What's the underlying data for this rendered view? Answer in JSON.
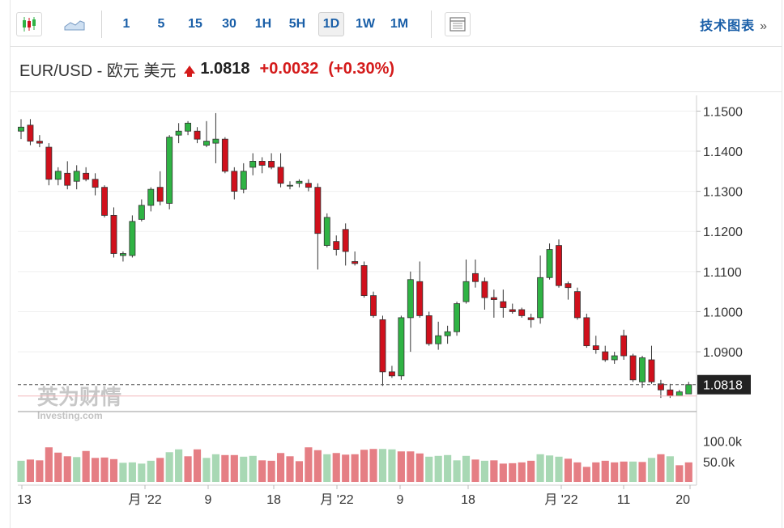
{
  "toolbar": {
    "chart_types": [
      "candlestick-icon",
      "area-chart-icon"
    ],
    "timeframes": [
      "1",
      "5",
      "15",
      "30",
      "1H",
      "5H",
      "1D",
      "1W",
      "1M"
    ],
    "active_timeframe": "1D",
    "extra_icon": "indicator-panel-icon",
    "tech_link": "技术图表",
    "tech_chevron": "»"
  },
  "quote": {
    "symbol": "EUR/USD - 欧元 美元",
    "price": "1.0818",
    "change": "+0.0032",
    "change_pct": "(+0.30%)",
    "direction": "up"
  },
  "colors": {
    "up": "#2fb344",
    "down": "#d0101c",
    "vol_up": "#a8d8b4",
    "vol_down": "#e57e84",
    "accent": "#1a5fa8"
  },
  "watermark": {
    "cn": "英为财情",
    "en": "Investing.com"
  },
  "chart_data": {
    "type": "candlestick",
    "price_axis": {
      "ticks": [
        1.15,
        1.14,
        1.13,
        1.12,
        1.11,
        1.1,
        1.09
      ],
      "tick_labels": [
        "1.1500",
        "1.1400",
        "1.1300",
        "1.1200",
        "1.1100",
        "1.1000",
        "1.0900"
      ],
      "range": [
        1.0755,
        1.1525
      ]
    },
    "current_price": {
      "value": 1.0818,
      "label": "1.0818"
    },
    "volume_axis": {
      "tick_labels": [
        "100.0k",
        "50.0k"
      ],
      "ticks": [
        100000,
        50000
      ],
      "max": 155000
    },
    "x_labels": [
      "13",
      "月 '22",
      "9",
      "18",
      "月 '22",
      "9",
      "18",
      "月 '22",
      "11",
      "20"
    ],
    "candles": [
      [
        1.145,
        1.148,
        1.143,
        1.146
      ],
      [
        1.1465,
        1.148,
        1.1415,
        1.1425
      ],
      [
        1.1425,
        1.144,
        1.141,
        1.142
      ],
      [
        1.141,
        1.142,
        1.1315,
        1.133
      ],
      [
        1.133,
        1.136,
        1.1315,
        1.135
      ],
      [
        1.1345,
        1.1375,
        1.1305,
        1.1315
      ],
      [
        1.1325,
        1.1365,
        1.1305,
        1.135
      ],
      [
        1.1345,
        1.136,
        1.1325,
        1.133
      ],
      [
        1.133,
        1.1345,
        1.129,
        1.131
      ],
      [
        1.131,
        1.1315,
        1.1235,
        1.124
      ],
      [
        1.124,
        1.126,
        1.1135,
        1.1145
      ],
      [
        1.114,
        1.115,
        1.1125,
        1.1145
      ],
      [
        1.114,
        1.124,
        1.1135,
        1.1225
      ],
      [
        1.123,
        1.128,
        1.1225,
        1.1265
      ],
      [
        1.1265,
        1.131,
        1.125,
        1.1305
      ],
      [
        1.131,
        1.135,
        1.1265,
        1.1275
      ],
      [
        1.127,
        1.144,
        1.1255,
        1.1435
      ],
      [
        1.144,
        1.147,
        1.142,
        1.145
      ],
      [
        1.145,
        1.1475,
        1.144,
        1.147
      ],
      [
        1.145,
        1.146,
        1.142,
        1.143
      ],
      [
        1.1415,
        1.1475,
        1.141,
        1.1425
      ],
      [
        1.142,
        1.1495,
        1.137,
        1.143
      ],
      [
        1.143,
        1.1435,
        1.1345,
        1.135
      ],
      [
        1.135,
        1.136,
        1.128,
        1.13
      ],
      [
        1.1305,
        1.137,
        1.1295,
        1.135
      ],
      [
        1.136,
        1.1395,
        1.134,
        1.1375
      ],
      [
        1.1375,
        1.1385,
        1.1345,
        1.1365
      ],
      [
        1.1375,
        1.1395,
        1.1355,
        1.136
      ],
      [
        1.136,
        1.1395,
        1.131,
        1.132
      ],
      [
        1.1315,
        1.1325,
        1.1305,
        1.1315
      ],
      [
        1.132,
        1.133,
        1.131,
        1.1325
      ],
      [
        1.132,
        1.133,
        1.13,
        1.131
      ],
      [
        1.131,
        1.132,
        1.1105,
        1.1195
      ],
      [
        1.1165,
        1.1245,
        1.116,
        1.1235
      ],
      [
        1.1175,
        1.119,
        1.114,
        1.1155
      ],
      [
        1.1205,
        1.122,
        1.1115,
        1.115
      ],
      [
        1.1125,
        1.115,
        1.1115,
        1.112
      ],
      [
        1.1115,
        1.1125,
        1.1035,
        1.104
      ],
      [
        1.104,
        1.105,
        1.0985,
        1.099
      ],
      [
        1.098,
        1.099,
        1.0815,
        1.085
      ],
      [
        1.085,
        1.0865,
        1.0835,
        1.084
      ],
      [
        1.084,
        1.099,
        1.083,
        1.0985
      ],
      [
        1.0985,
        1.11,
        1.09,
        1.108
      ],
      [
        1.1075,
        1.1125,
        1.0985,
        1.099
      ],
      [
        1.099,
        1.1,
        1.0915,
        1.092
      ],
      [
        1.092,
        1.0975,
        1.0905,
        1.094
      ],
      [
        1.094,
        1.0965,
        1.092,
        1.095
      ],
      [
        1.095,
        1.1025,
        1.094,
        1.102
      ],
      [
        1.1025,
        1.113,
        1.102,
        1.1075
      ],
      [
        1.1095,
        1.113,
        1.106,
        1.1075
      ],
      [
        1.1075,
        1.1085,
        1.1005,
        1.1035
      ],
      [
        1.1035,
        1.1055,
        1.0985,
        1.103
      ],
      [
        1.1025,
        1.1055,
        1.0985,
        1.101
      ],
      [
        1.1005,
        1.102,
        1.0995,
        1.1
      ],
      [
        1.1005,
        1.101,
        1.0985,
        1.099
      ],
      [
        1.0985,
        1.0995,
        1.096,
        1.098
      ],
      [
        1.0985,
        1.114,
        1.097,
        1.1085
      ],
      [
        1.1085,
        1.117,
        1.108,
        1.1155
      ],
      [
        1.1165,
        1.118,
        1.106,
        1.1065
      ],
      [
        1.107,
        1.1075,
        1.103,
        1.106
      ],
      [
        1.105,
        1.106,
        1.098,
        1.0985
      ],
      [
        1.0985,
        1.0995,
        1.091,
        1.0915
      ],
      [
        1.0915,
        1.094,
        1.0895,
        1.0905
      ],
      [
        1.09,
        1.0915,
        1.0875,
        1.088
      ],
      [
        1.088,
        1.09,
        1.087,
        1.089
      ],
      [
        1.094,
        1.0955,
        1.088,
        1.089
      ],
      [
        1.089,
        1.0895,
        1.0825,
        1.083
      ],
      [
        1.0825,
        1.089,
        1.081,
        1.0885
      ],
      [
        1.088,
        1.0915,
        1.082,
        1.0825
      ],
      [
        1.082,
        1.083,
        1.0785,
        1.0805
      ],
      [
        1.0805,
        1.082,
        1.0785,
        1.079
      ],
      [
        1.079,
        1.0805,
        1.079,
        1.08
      ],
      [
        1.0795,
        1.0825,
        1.0795,
        1.0818
      ]
    ],
    "volumes": [
      [
        52000,
        1
      ],
      [
        55000,
        0
      ],
      [
        53000,
        0
      ],
      [
        85000,
        0
      ],
      [
        72000,
        0
      ],
      [
        63000,
        0
      ],
      [
        61000,
        1
      ],
      [
        76000,
        0
      ],
      [
        59000,
        0
      ],
      [
        60000,
        0
      ],
      [
        56000,
        0
      ],
      [
        47000,
        1
      ],
      [
        48000,
        1
      ],
      [
        45000,
        1
      ],
      [
        52000,
        1
      ],
      [
        59000,
        0
      ],
      [
        73000,
        1
      ],
      [
        80000,
        1
      ],
      [
        63000,
        0
      ],
      [
        80000,
        0
      ],
      [
        59000,
        1
      ],
      [
        68000,
        1
      ],
      [
        66000,
        0
      ],
      [
        66000,
        0
      ],
      [
        62000,
        1
      ],
      [
        64000,
        1
      ],
      [
        53000,
        0
      ],
      [
        52000,
        0
      ],
      [
        71000,
        0
      ],
      [
        63000,
        0
      ],
      [
        51000,
        0
      ],
      [
        85000,
        0
      ],
      [
        78000,
        0
      ],
      [
        68000,
        1
      ],
      [
        71000,
        0
      ],
      [
        67000,
        0
      ],
      [
        68000,
        0
      ],
      [
        79000,
        0
      ],
      [
        81000,
        0
      ],
      [
        81000,
        1
      ],
      [
        80000,
        1
      ],
      [
        75000,
        0
      ],
      [
        75000,
        0
      ],
      [
        70000,
        0
      ],
      [
        62000,
        1
      ],
      [
        64000,
        1
      ],
      [
        66000,
        1
      ],
      [
        53000,
        1
      ],
      [
        64000,
        1
      ],
      [
        55000,
        0
      ],
      [
        52000,
        1
      ],
      [
        53000,
        0
      ],
      [
        45000,
        0
      ],
      [
        46000,
        0
      ],
      [
        48000,
        0
      ],
      [
        52000,
        0
      ],
      [
        68000,
        1
      ],
      [
        65000,
        1
      ],
      [
        62000,
        1
      ],
      [
        57000,
        0
      ],
      [
        48000,
        0
      ],
      [
        37000,
        0
      ],
      [
        48000,
        0
      ],
      [
        52000,
        0
      ],
      [
        48000,
        0
      ],
      [
        50000,
        0
      ],
      [
        50000,
        1
      ],
      [
        49000,
        0
      ],
      [
        59000,
        1
      ],
      [
        68000,
        0
      ],
      [
        63000,
        1
      ],
      [
        41000,
        0
      ],
      [
        48000,
        0
      ]
    ]
  }
}
